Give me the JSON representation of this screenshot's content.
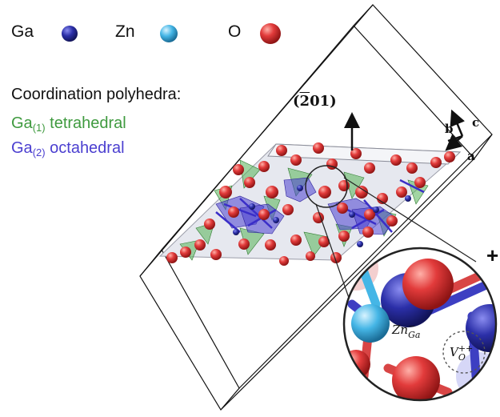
{
  "legend": {
    "items": [
      {
        "label": "Ga",
        "color": "#2b2fa8"
      },
      {
        "label": "Zn",
        "color": "#45b6e6"
      },
      {
        "label": "O",
        "color": "#e23b3b"
      }
    ]
  },
  "coordination": {
    "title": "Coordination polyhedra:",
    "tetrahedral": {
      "base": "Ga",
      "sub": "(1)",
      "rest": " tetrahedral",
      "color": "#3f9a3f"
    },
    "octahedral": {
      "base": "Ga",
      "sub": "(2)",
      "rest": " octahedral",
      "color": "#4b3fd0"
    }
  },
  "plane": {
    "open": "(",
    "bar_digit": "2",
    "rest": "01)"
  },
  "axes": {
    "a": "a",
    "b": "b",
    "c": "c"
  },
  "inset": {
    "zn_defect": {
      "base": "Zn",
      "sup": "−",
      "sub": "Ga"
    },
    "o_vacancy": {
      "base": "V",
      "sup": "++",
      "sub": "O"
    },
    "plus_mark": "+"
  }
}
